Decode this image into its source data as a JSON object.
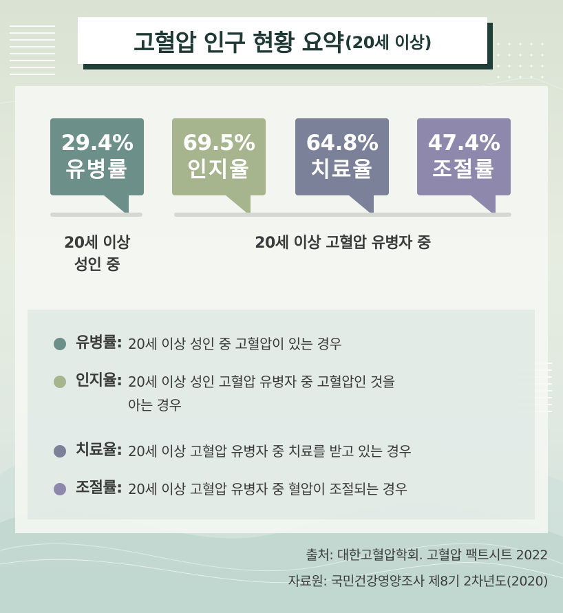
{
  "title": {
    "main": "고혈압 인구 현황 요약",
    "sub": "(20세 이상)"
  },
  "stats": [
    {
      "value": "29.4%",
      "label": "유병률",
      "color": "#6d8f8a"
    },
    {
      "value": "69.5%",
      "label": "인지율",
      "color": "#a7b58f"
    },
    {
      "value": "64.8%",
      "label": "치료율",
      "color": "#7a8199"
    },
    {
      "value": "47.4%",
      "label": "조절률",
      "color": "#8f88ad"
    }
  ],
  "captions": {
    "left_line1": "20세 이상",
    "left_line2": "성인 중",
    "right": "20세 이상 고혈압 유병자 중"
  },
  "definitions": [
    {
      "term": "유병률",
      "desc": "20세 이상 성인 중 고혈압이 있는 경우",
      "color": "#6d8f8a"
    },
    {
      "term": "인지율",
      "desc": "20세 이상 성인 고혈압 유병자 중 고혈압인 것을 아는 경우",
      "color": "#a7b58f"
    },
    {
      "term": "치료율",
      "desc": "20세 이상 고혈압 유병자 중 치료를 받고 있는 경우",
      "color": "#7a8199"
    },
    {
      "term": "조절률",
      "desc": "20세 이상 고혈압 유병자 중 혈압이 조절되는 경우",
      "color": "#8f88ad"
    }
  ],
  "source": {
    "line1": "출처: 대한고혈압학회. 고혈압 팩트시트 2022",
    "line2": "자료원: 국민건강영양조사 제8기 2차년도(2020)"
  }
}
